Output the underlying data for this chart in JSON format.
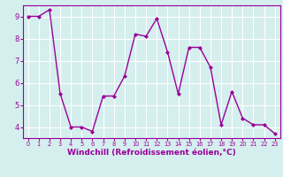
{
  "x": [
    0,
    1,
    2,
    3,
    4,
    5,
    6,
    7,
    8,
    9,
    10,
    11,
    12,
    13,
    14,
    15,
    16,
    17,
    18,
    19,
    20,
    21,
    22,
    23
  ],
  "y": [
    9.0,
    9.0,
    9.3,
    5.5,
    4.0,
    4.0,
    3.8,
    5.4,
    5.4,
    6.3,
    8.2,
    8.1,
    8.9,
    7.4,
    5.5,
    7.6,
    7.6,
    6.7,
    4.1,
    5.6,
    4.4,
    4.1,
    4.1,
    3.7
  ],
  "line_color": "#990099",
  "marker": "D",
  "marker_size": 2.0,
  "linewidth": 1.0,
  "xlabel": "Windchill (Refroidissement éolien,°C)",
  "ylim": [
    3.5,
    9.5
  ],
  "xlim": [
    -0.5,
    23.5
  ],
  "yticks": [
    4,
    5,
    6,
    7,
    8,
    9
  ],
  "xticks": [
    0,
    1,
    2,
    3,
    4,
    5,
    6,
    7,
    8,
    9,
    10,
    11,
    12,
    13,
    14,
    15,
    16,
    17,
    18,
    19,
    20,
    21,
    22,
    23
  ],
  "background_color": "#d5eeee",
  "grid_color": "#b0d8d8",
  "tick_color": "#990099",
  "label_color": "#990099",
  "xlabel_fontsize": 6.5,
  "tick_fontsize_x": 4.8,
  "tick_fontsize_y": 6.0,
  "spine_color": "#990099"
}
